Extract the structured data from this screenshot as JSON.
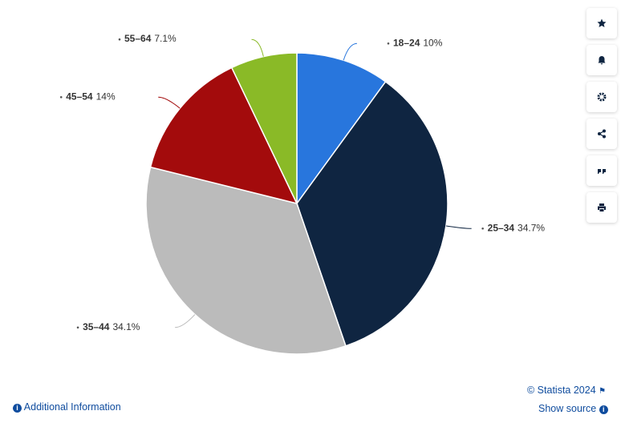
{
  "chart_data": {
    "type": "pie",
    "categories": [
      "18–24",
      "25–34",
      "35–44",
      "45–54",
      "55–64"
    ],
    "values": [
      10,
      34.7,
      34.1,
      14,
      7.1
    ],
    "value_labels": [
      "10%",
      "34.7%",
      "34.1%",
      "14%",
      "7.1%"
    ],
    "colors": [
      "#2876dd",
      "#0f2541",
      "#bbbbbb",
      "#a30b0c",
      "#8aba27"
    ]
  },
  "footer": {
    "copyright": "© Statista 2024",
    "show_source": "Show source",
    "additional_information": "Additional Information"
  }
}
